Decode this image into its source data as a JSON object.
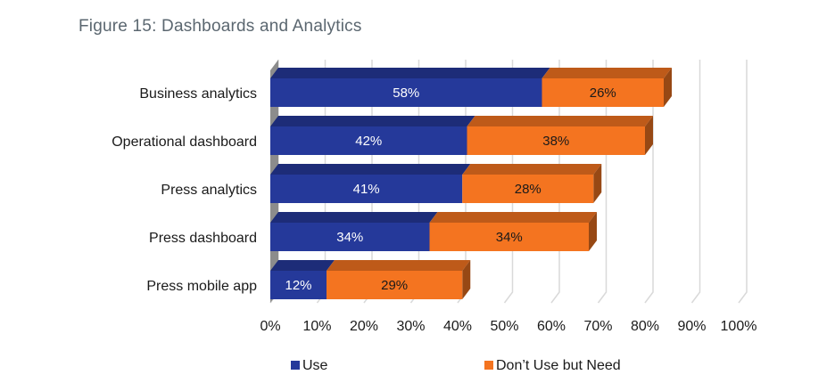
{
  "figure": {
    "title": "Figure 15: Dashboards and Analytics"
  },
  "chart_data": {
    "type": "bar",
    "orientation": "horizontal",
    "stacked": true,
    "style": "3d",
    "title": "Figure 15: Dashboards and Analytics",
    "categories": [
      "Business analytics",
      "Operational dashboard",
      "Press analytics",
      "Press dashboard",
      "Press mobile app"
    ],
    "series": [
      {
        "name": "Use",
        "color": "#25399a",
        "label_color": "#ffffff",
        "values": [
          58,
          42,
          41,
          34,
          12
        ],
        "labels": [
          "58%",
          "42%",
          "41%",
          "34%",
          "12%"
        ]
      },
      {
        "name": "Don’t Use but Need",
        "color": "#f47420",
        "label_color": "#1a1a1a",
        "values": [
          26,
          38,
          28,
          34,
          29
        ],
        "labels": [
          "26%",
          "38%",
          "28%",
          "34%",
          "29%"
        ]
      }
    ],
    "xlim": [
      0,
      100
    ],
    "xticks": [
      0,
      10,
      20,
      30,
      40,
      50,
      60,
      70,
      80,
      90,
      100
    ],
    "xtick_labels": [
      "0%",
      "10%",
      "20%",
      "30%",
      "40%",
      "50%",
      "60%",
      "70%",
      "80%",
      "90%",
      "100%"
    ],
    "xlabel": "",
    "ylabel": "",
    "grid": true,
    "legend_position": "bottom"
  }
}
